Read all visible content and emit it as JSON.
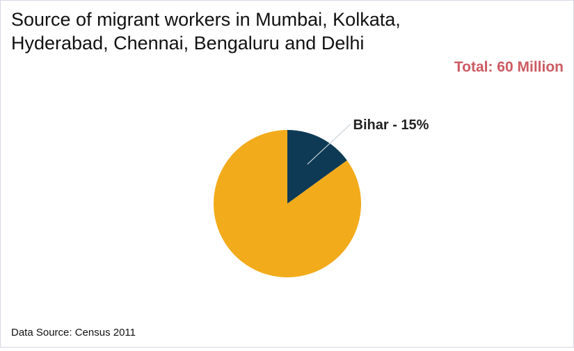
{
  "chart_data": {
    "type": "pie",
    "title": [
      "Source of migrant workers in Mumbai, Kolkata,",
      "Hyderabad, Chennai, Bengaluru and Delhi"
    ],
    "subtitle": "Total: 60 Million",
    "values": [
      15,
      85
    ],
    "value_labels": [
      "Bihar - 15%",
      null
    ],
    "colors": [
      "#0e3a55",
      "#f2ab1b"
    ],
    "source": "Data Source: Census 2011"
  }
}
